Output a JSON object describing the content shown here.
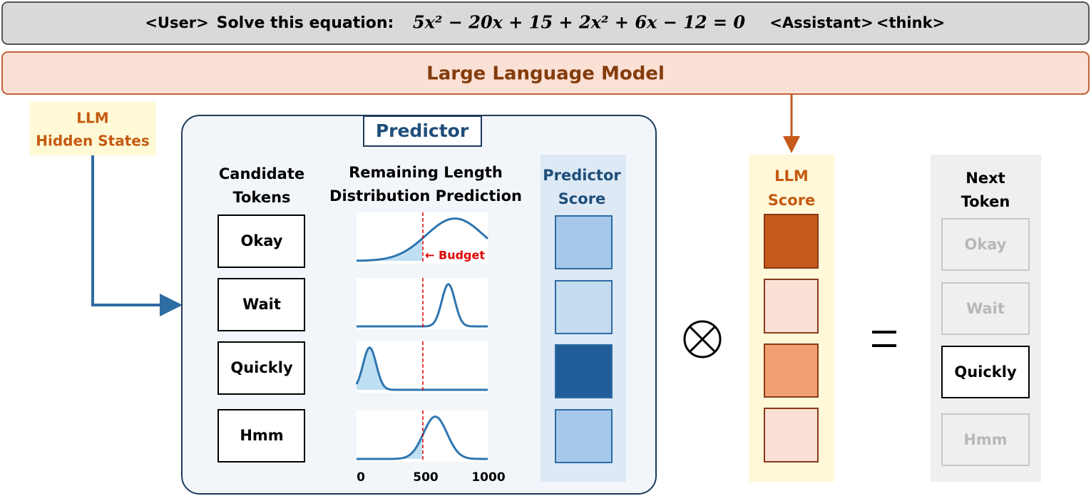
{
  "prompt": {
    "user": "<User>",
    "text": "Solve this equation:",
    "equation": "5x² − 20x + 15 + 2x² + 6x − 12 = 0",
    "assistant": "<Assistant>",
    "think": "<think>"
  },
  "model": "Large Language Model",
  "hidden_states": [
    "LLM",
    "Hidden States"
  ],
  "predictor": {
    "title": "Predictor",
    "candidates_header": [
      "Candidate",
      "Tokens"
    ],
    "distribution_header": [
      "Remaining Length",
      "Distribution Prediction"
    ],
    "score_header": [
      "Predictor",
      "Score"
    ],
    "candidates": [
      "Okay",
      "Wait",
      "Quickly",
      "Hmm"
    ],
    "budget_label": "← Budget",
    "axis_ticks": [
      "0",
      "500",
      "1000"
    ]
  },
  "llm_score_header": [
    "LLM",
    "Score"
  ],
  "next_token": {
    "header": [
      "Next",
      "Token"
    ],
    "tokens": [
      "Okay",
      "Wait",
      "Quickly",
      "Hmm"
    ]
  }
}
